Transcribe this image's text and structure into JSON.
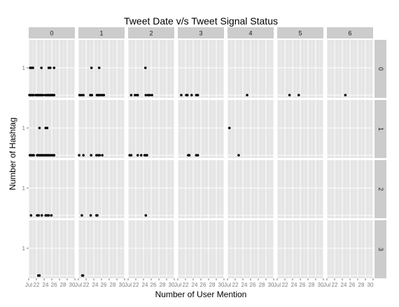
{
  "chart_data": {
    "type": "scatter",
    "title": "Tweet Date v/s Tweet Signal Status",
    "xlabel": "Number of User Mention",
    "ylabel": "Number of Hashtag",
    "facet_columns": [
      "0",
      "1",
      "2",
      "3",
      "4",
      "5",
      "6"
    ],
    "facet_rows": [
      "0",
      "1",
      "2",
      "3"
    ],
    "y_tick_labels": [
      "1"
    ],
    "x_tick_labels": [
      "Jul",
      "22",
      "24",
      "26",
      "28",
      "30"
    ],
    "ylim": [
      0,
      1
    ],
    "x_domain": [
      0,
      12
    ],
    "grid": true,
    "panels": [
      {
        "col": "0",
        "row": "0",
        "points": [
          [
            0.4,
            1
          ],
          [
            0.7,
            1
          ],
          [
            1.1,
            1
          ],
          [
            3.3,
            1
          ],
          [
            5.2,
            1
          ],
          [
            5.6,
            1
          ],
          [
            6.6,
            1
          ],
          [
            0.2,
            0
          ],
          [
            0.5,
            0
          ],
          [
            0.9,
            0
          ],
          [
            1.2,
            0
          ],
          [
            1.8,
            0
          ],
          [
            2.1,
            0
          ],
          [
            2.3,
            0
          ],
          [
            2.7,
            0
          ],
          [
            3.0,
            0
          ],
          [
            3.3,
            0
          ],
          [
            3.7,
            0
          ],
          [
            4.3,
            0
          ],
          [
            4.8,
            0
          ],
          [
            5.1,
            0
          ],
          [
            5.4,
            0
          ],
          [
            5.7,
            0
          ],
          [
            6.0,
            0
          ],
          [
            6.3,
            0
          ],
          [
            6.6,
            0
          ]
        ]
      },
      {
        "col": "1",
        "row": "0",
        "points": [
          [
            3.4,
            1
          ],
          [
            5.4,
            1
          ],
          [
            0.3,
            0
          ],
          [
            0.8,
            0
          ],
          [
            1.3,
            0
          ],
          [
            3.1,
            0
          ],
          [
            3.5,
            0
          ],
          [
            4.8,
            0
          ],
          [
            5.1,
            0
          ],
          [
            5.4,
            0
          ],
          [
            5.8,
            0
          ],
          [
            6.2,
            0
          ],
          [
            6.6,
            0
          ]
        ]
      },
      {
        "col": "2",
        "row": "0",
        "points": [
          [
            4.5,
            1
          ],
          [
            0.8,
            0
          ],
          [
            1.8,
            0
          ],
          [
            2.3,
            0
          ],
          [
            2.5,
            0
          ],
          [
            4.6,
            0
          ],
          [
            5.2,
            0
          ],
          [
            5.6,
            0
          ],
          [
            6.2,
            0
          ]
        ]
      },
      {
        "col": "3",
        "row": "0",
        "points": [
          [
            0.9,
            0
          ],
          [
            2.2,
            0
          ],
          [
            2.5,
            0
          ],
          [
            3.6,
            0
          ],
          [
            4.8,
            0
          ],
          [
            5.2,
            0
          ]
        ]
      },
      {
        "col": "4",
        "row": "0",
        "points": [
          [
            5.1,
            0
          ]
        ]
      },
      {
        "col": "5",
        "row": "0",
        "points": [
          [
            3.2,
            0
          ],
          [
            5.6,
            0
          ]
        ]
      },
      {
        "col": "6",
        "row": "0",
        "points": [
          [
            4.8,
            0
          ]
        ]
      },
      {
        "col": "0",
        "row": "1",
        "points": [
          [
            2.8,
            1
          ],
          [
            4.4,
            1
          ],
          [
            4.8,
            1
          ],
          [
            0.3,
            0
          ],
          [
            0.6,
            0
          ],
          [
            1.0,
            0
          ],
          [
            1.3,
            0
          ],
          [
            2.2,
            0
          ],
          [
            2.5,
            0
          ],
          [
            2.8,
            0
          ],
          [
            3.1,
            0
          ],
          [
            3.4,
            0
          ],
          [
            3.7,
            0
          ],
          [
            4.0,
            0
          ],
          [
            4.3,
            0
          ],
          [
            4.6,
            0
          ],
          [
            4.9,
            0
          ],
          [
            5.2,
            0
          ],
          [
            5.5,
            0
          ],
          [
            5.8,
            0
          ],
          [
            6.1,
            0
          ],
          [
            6.4,
            0
          ],
          [
            6.6,
            0
          ]
        ]
      },
      {
        "col": "1",
        "row": "1",
        "points": [
          [
            0.2,
            0
          ],
          [
            1.3,
            0
          ],
          [
            3.3,
            0
          ],
          [
            4.7,
            0
          ],
          [
            5.2,
            0
          ],
          [
            5.5,
            0
          ],
          [
            6.2,
            0
          ]
        ]
      },
      {
        "col": "2",
        "row": "1",
        "points": [
          [
            0.4,
            0
          ],
          [
            0.8,
            0
          ],
          [
            2.5,
            0
          ],
          [
            3.4,
            0
          ],
          [
            4.3,
            0
          ],
          [
            4.6,
            0
          ],
          [
            4.9,
            0
          ]
        ]
      },
      {
        "col": "3",
        "row": "1",
        "points": [
          [
            2.7,
            0
          ],
          [
            3.0,
            0
          ],
          [
            4.8,
            0
          ],
          [
            5.2,
            0
          ]
        ]
      },
      {
        "col": "4",
        "row": "1",
        "points": [
          [
            0.5,
            1
          ],
          [
            2.9,
            0
          ]
        ]
      },
      {
        "col": "0",
        "row": "2",
        "points": [
          [
            0.6,
            0
          ],
          [
            2.2,
            0
          ],
          [
            2.6,
            0
          ],
          [
            3.4,
            0
          ],
          [
            4.4,
            0
          ],
          [
            4.8,
            0
          ],
          [
            5.2,
            0
          ],
          [
            5.9,
            0
          ]
        ]
      },
      {
        "col": "1",
        "row": "2",
        "points": [
          [
            0.9,
            0
          ],
          [
            3.2,
            0
          ],
          [
            4.7,
            0
          ],
          [
            4.9,
            0
          ]
        ]
      },
      {
        "col": "2",
        "row": "2",
        "points": [
          [
            4.6,
            0
          ]
        ]
      },
      {
        "col": "0",
        "row": "3",
        "points": [
          [
            2.5,
            0
          ],
          [
            2.8,
            0
          ]
        ]
      },
      {
        "col": "1",
        "row": "3",
        "points": [
          [
            1.0,
            0
          ],
          [
            1.2,
            0
          ]
        ]
      }
    ]
  },
  "colors": {
    "panel_background": "#e5e5e5",
    "grid_major": "#ffffff",
    "grid_minor": "#f2f2f2",
    "strip_background": "#cccccc",
    "point": "#000000",
    "tick_text": "#7f7f7f"
  }
}
